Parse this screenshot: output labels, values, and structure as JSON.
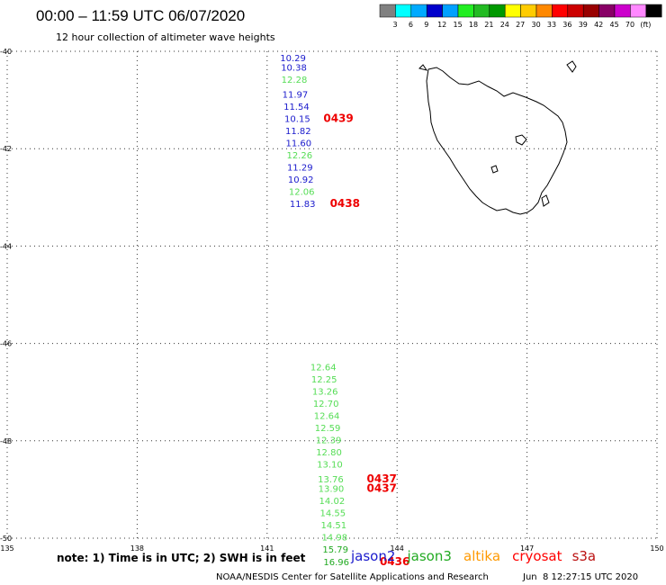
{
  "header": {
    "title": "00:00 – 11:59 UTC 06/07/2020",
    "subtitle": "12 hour collection of altimeter wave heights"
  },
  "legend": {
    "colors": [
      "#808080",
      "#00ffff",
      "#00aaff",
      "#0000cc",
      "#00a0ff",
      "#22ee22",
      "#22bb22",
      "#009900",
      "#ffff00",
      "#ffcc00",
      "#ff8800",
      "#ff0000",
      "#cc0000",
      "#990000",
      "#880066",
      "#cc00cc",
      "#ff88ff",
      "#000000"
    ],
    "labels": [
      "3",
      "6",
      "9",
      "12",
      "15",
      "18",
      "21",
      "24",
      "27",
      "30",
      "33",
      "36",
      "39",
      "42",
      "45",
      "70",
      "(ft)"
    ]
  },
  "axes": {
    "lon_labels": [
      "135",
      "138",
      "141",
      "144",
      "147",
      "150"
    ],
    "lat_labels": [
      "-40",
      "-42",
      "-44",
      "-46",
      "-48",
      "-50"
    ],
    "lon_range": [
      135,
      150
    ],
    "lat_range": [
      -50,
      -40
    ]
  },
  "tracks": [
    {
      "color": "#1a1acc",
      "points": [
        {
          "v": "10.29",
          "c": "#1a1acc",
          "lon": 141.3,
          "lat": -40.2
        },
        {
          "v": "10.38",
          "c": "#1a1acc",
          "lon": 141.32,
          "lat": -40.4
        },
        {
          "v": "12.28",
          "c": "#55dd55",
          "lon": 141.33,
          "lat": -40.65
        },
        {
          "v": "11.97",
          "c": "#1a1acc",
          "lon": 141.35,
          "lat": -40.95
        },
        {
          "v": "11.54",
          "c": "#1a1acc",
          "lon": 141.38,
          "lat": -41.2
        },
        {
          "v": "10.15",
          "c": "#1a1acc",
          "lon": 141.4,
          "lat": -41.45
        },
        {
          "v": "11.82",
          "c": "#1a1acc",
          "lon": 141.42,
          "lat": -41.7
        },
        {
          "v": "11.60",
          "c": "#1a1acc",
          "lon": 141.43,
          "lat": -41.95
        },
        {
          "v": "12.26",
          "c": "#55dd55",
          "lon": 141.45,
          "lat": -42.2
        },
        {
          "v": "11.29",
          "c": "#1a1acc",
          "lon": 141.46,
          "lat": -42.45
        },
        {
          "v": "10.92",
          "c": "#1a1acc",
          "lon": 141.48,
          "lat": -42.7
        },
        {
          "v": "12.06",
          "c": "#55dd55",
          "lon": 141.5,
          "lat": -42.95
        },
        {
          "v": "11.83",
          "c": "#1a1acc",
          "lon": 141.52,
          "lat": -43.2
        }
      ]
    },
    {
      "color": "#55dd55",
      "points": [
        {
          "v": "12.64",
          "c": "#55dd55",
          "lon": 142.0,
          "lat": -46.55
        },
        {
          "v": "12.25",
          "c": "#55dd55",
          "lon": 142.02,
          "lat": -46.8
        },
        {
          "v": "13.26",
          "c": "#55dd55",
          "lon": 142.04,
          "lat": -47.05
        },
        {
          "v": "12.70",
          "c": "#55dd55",
          "lon": 142.06,
          "lat": -47.3
        },
        {
          "v": "12.64",
          "c": "#55dd55",
          "lon": 142.08,
          "lat": -47.55
        },
        {
          "v": "12.59",
          "c": "#55dd55",
          "lon": 142.1,
          "lat": -47.8
        },
        {
          "v": "12.39",
          "c": "#55dd55",
          "lon": 142.12,
          "lat": -48.05
        },
        {
          "v": "12.80",
          "c": "#55dd55",
          "lon": 142.13,
          "lat": -48.3
        },
        {
          "v": "13.10",
          "c": "#55dd55",
          "lon": 142.15,
          "lat": -48.55
        },
        {
          "v": "13.76",
          "c": "#55dd55",
          "lon": 142.17,
          "lat": -48.85
        },
        {
          "v": "13.90",
          "c": "#55dd55",
          "lon": 142.18,
          "lat": -49.05
        },
        {
          "v": "14.02",
          "c": "#55dd55",
          "lon": 142.2,
          "lat": -49.3
        },
        {
          "v": "14.55",
          "c": "#55dd55",
          "lon": 142.22,
          "lat": -49.55
        },
        {
          "v": "14.51",
          "c": "#55dd55",
          "lon": 142.24,
          "lat": -49.8
        },
        {
          "v": "14.98",
          "c": "#55dd55",
          "lon": 142.26,
          "lat": -50.05
        },
        {
          "v": "15.79",
          "c": "#22aa22",
          "lon": 142.28,
          "lat": -50.3
        },
        {
          "v": "16.96",
          "c": "#22aa22",
          "lon": 142.3,
          "lat": -50.55
        }
      ]
    }
  ],
  "pass_labels": [
    {
      "text": "0439",
      "lon": 142.3,
      "lat": -41.45
    },
    {
      "text": "0438",
      "lon": 142.45,
      "lat": -43.2
    },
    {
      "text": "0437",
      "lon": 143.3,
      "lat": -48.85
    },
    {
      "text": "0437",
      "lon": 143.3,
      "lat": -49.05
    },
    {
      "text": "0436",
      "lon": 143.6,
      "lat": -50.55
    }
  ],
  "footer": {
    "note": "note: 1) Time is in UTC; 2) SWH is in feet",
    "satellites": [
      {
        "name": "jason2",
        "color": "#1a1acc"
      },
      {
        "name": "jason3",
        "color": "#22aa22"
      },
      {
        "name": "altika",
        "color": "#ff9900"
      },
      {
        "name": "cryosat",
        "color": "#ff0000"
      },
      {
        "name": "s3a",
        "color": "#bb1111"
      }
    ],
    "credit": "NOAA/NESDIS Center for Satellite Applications and Research",
    "timestamp": "Jun  8 12:27:15 UTC 2020"
  }
}
